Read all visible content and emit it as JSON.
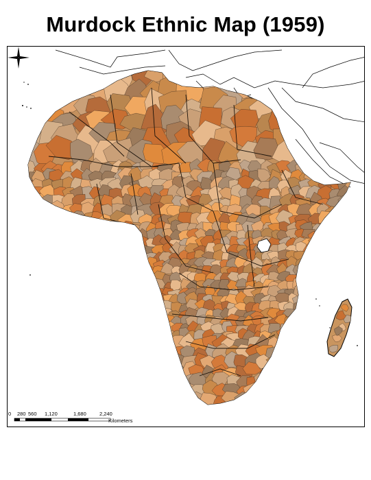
{
  "title": "Murdock Ethnic Map (1959)",
  "scale_bar": {
    "ticks": [
      "0",
      "280",
      "560",
      "1,120",
      "1,680",
      "2,240"
    ],
    "unit": "Kilometers"
  },
  "colors": {
    "palette": [
      "#c98a4b",
      "#d9a06a",
      "#b9864f",
      "#e08a3c",
      "#a98c70",
      "#d4b08a",
      "#c86f32",
      "#bfa48a",
      "#e3a873",
      "#9c7b5c",
      "#d47a3a",
      "#caa078",
      "#e7b98c",
      "#b56b3a",
      "#f0a860",
      "#a77b56"
    ],
    "border": "#3a2a1e",
    "land_outline": "#000000"
  }
}
